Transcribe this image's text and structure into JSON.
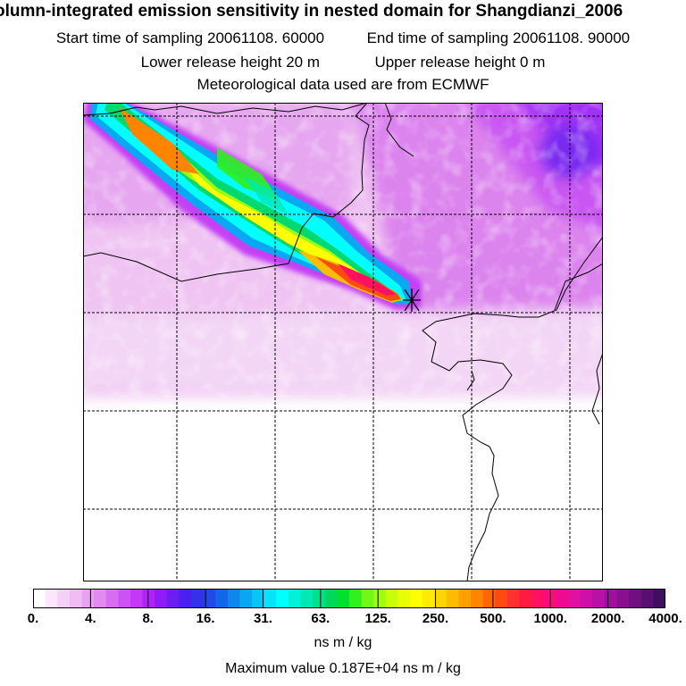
{
  "header": {
    "title": "olumn-integrated emission sensitivity in nested domain for Shangdianzi_2006",
    "start_label": "Start time of sampling",
    "start_value": "20061108. 60000",
    "end_label": "End time of sampling",
    "end_value": "20061108. 90000",
    "lower_label": "Lower release height",
    "lower_value": "20 m",
    "upper_label": "Upper release height",
    "upper_value": "0 m",
    "met_line": "Meteorological data used are from ECMWF"
  },
  "map": {
    "release_marker": "release-site-cross-icon",
    "grid_columns": 5,
    "grid_rows": 5
  },
  "colorbar": {
    "tick_labels": [
      "0.",
      "4.",
      "8.",
      "16.",
      "31.",
      "63.",
      "125.",
      "250.",
      "500.",
      "1000.",
      "2000.",
      "4000."
    ],
    "segment_colors": [
      "#ffffff",
      "#fbe6fb",
      "#f5d0f7",
      "#efbcf3",
      "#e8a3f0",
      "#e18af0",
      "#d76ef2",
      "#cd52f5",
      "#c238f6",
      "#b022f8",
      "#8f1cf6",
      "#6d1cf2",
      "#4b20ee",
      "#3332e8",
      "#2448e6",
      "#1266ea",
      "#0d86ee",
      "#0aa6f2",
      "#09c4f6",
      "#06e3fa",
      "#00ffff",
      "#00f0d8",
      "#00e8b4",
      "#00e08c",
      "#00d85c",
      "#00e030",
      "#30f020",
      "#70f818",
      "#a0fc10",
      "#c8fe0a",
      "#e8ff06",
      "#ffff00",
      "#ffea00",
      "#ffd400",
      "#ffbc00",
      "#ffa000",
      "#ff8400",
      "#ff6600",
      "#ff4a10",
      "#ff3030",
      "#ff1a40",
      "#ff1060",
      "#ff0a80",
      "#f00a90",
      "#e010a0",
      "#cc10a8",
      "#b810a8",
      "#a010a0",
      "#881090",
      "#701080",
      "#581070",
      "#401060"
    ],
    "unit": "ns m / kg"
  },
  "footer": {
    "max_label": "Maximum value",
    "max_value": "0.187E+04",
    "max_unit": "ns m / kg"
  }
}
